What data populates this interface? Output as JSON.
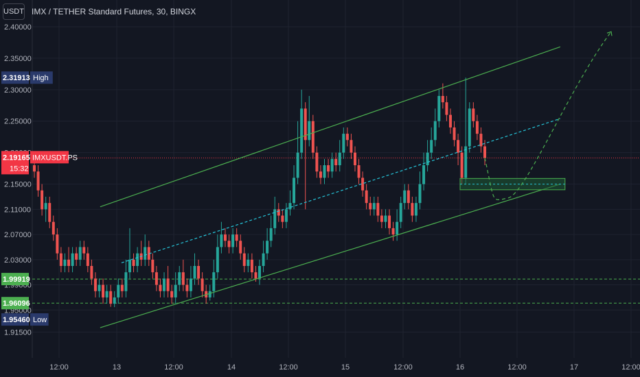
{
  "header": {
    "currency_button": "USDT",
    "symbol_title": "IMX / TETHER Standard Futures, 30, BINGX"
  },
  "colors": {
    "background": "#131722",
    "up": "#26a69a",
    "down": "#ef5350",
    "channel": "#4caf50",
    "midline": "#26c6da",
    "projection": "#4caf50",
    "zone_fill": "#1e5b34",
    "zone_border": "#4caf50",
    "price_line": "#f23645",
    "support_line": "#4caf50",
    "high_badge": "#2a3a6b",
    "low_badge": "#2a3a6b"
  },
  "price_badges": {
    "high": {
      "value": "2.31913",
      "label": "High"
    },
    "current": {
      "value": "2.19165",
      "label": "IMXUSDT.PS",
      "countdown": "15:32"
    },
    "support1": {
      "value": "1.99919"
    },
    "support2": {
      "value": "1.96096"
    },
    "low": {
      "value": "1.95460",
      "label": "Low"
    }
  },
  "chart_data": {
    "type": "candlestick",
    "title": "IMX / TETHER Standard Futures, 30, BINGX",
    "y_ticks": [
      "2.40000",
      "2.35000",
      "2.30000",
      "2.25000",
      "2.20000",
      "2.15000",
      "2.11000",
      "2.07000",
      "2.03000",
      "1.99000",
      "1.95000",
      "1.91500"
    ],
    "x_ticks": [
      "12:00",
      "13",
      "12:00",
      "14",
      "12:00",
      "15",
      "12:00",
      "16",
      "12:00",
      "17",
      "12:00"
    ],
    "ylim": [
      1.885,
      2.425
    ],
    "high": 2.31913,
    "low": 1.9546,
    "current_price": 2.19165,
    "support_levels": [
      1.99919,
      1.96096
    ],
    "channel": {
      "upper": {
        "start": {
          "x": "12 21:00",
          "y": 2.114
        },
        "end": {
          "x": "16 21:00",
          "y": 2.368
        }
      },
      "lower": {
        "start": {
          "x": "12 21:00",
          "y": 1.922
        },
        "end": {
          "x": "16 21:00",
          "y": 2.15
        }
      },
      "mid": {
        "start": {
          "x": "13 01:00",
          "y": 2.025
        },
        "end": {
          "x": "16 21:00",
          "y": 2.254
        }
      }
    },
    "target_zone": {
      "top": 2.159,
      "bottom": 2.141,
      "from": "16 00:00",
      "to": "16 22:00"
    },
    "candles_values": [
      [
        2.18,
        2.17,
        2.2,
        2.16
      ],
      [
        2.17,
        2.14,
        2.18,
        2.13
      ],
      [
        2.14,
        2.11,
        2.15,
        2.1
      ],
      [
        2.11,
        2.12,
        2.13,
        2.09
      ],
      [
        2.12,
        2.09,
        2.13,
        2.08
      ],
      [
        2.09,
        2.07,
        2.1,
        2.06
      ],
      [
        2.07,
        2.04,
        2.08,
        2.03
      ],
      [
        2.04,
        2.02,
        2.05,
        2.01
      ],
      [
        2.02,
        2.03,
        2.04,
        2.01
      ],
      [
        2.03,
        2.02,
        2.05,
        2.01
      ],
      [
        2.02,
        2.04,
        2.05,
        2.01
      ],
      [
        2.04,
        2.03,
        2.05,
        2.02
      ],
      [
        2.03,
        2.05,
        2.06,
        2.02
      ],
      [
        2.05,
        2.04,
        2.06,
        2.03
      ],
      [
        2.04,
        2.02,
        2.05,
        2.01
      ],
      [
        2.02,
        2.0,
        2.03,
        1.99
      ],
      [
        2.0,
        1.98,
        2.01,
        1.97
      ],
      [
        1.98,
        1.99,
        2.0,
        1.97
      ],
      [
        1.99,
        1.97,
        2.0,
        1.96
      ],
      [
        1.97,
        1.98,
        1.99,
        1.96
      ],
      [
        1.98,
        1.96,
        1.99,
        1.955
      ],
      [
        1.96,
        1.97,
        1.98,
        1.9546
      ],
      [
        1.97,
        1.99,
        2.0,
        1.96
      ],
      [
        1.99,
        1.98,
        2.0,
        1.97
      ],
      [
        1.98,
        2.01,
        2.03,
        1.97
      ],
      [
        2.01,
        2.03,
        2.08,
        2.0
      ],
      [
        2.03,
        2.02,
        2.04,
        2.01
      ],
      [
        2.02,
        2.04,
        2.05,
        2.01
      ],
      [
        2.04,
        2.03,
        2.06,
        2.02
      ],
      [
        2.03,
        2.05,
        2.07,
        2.02
      ],
      [
        2.05,
        2.03,
        2.06,
        2.02
      ],
      [
        2.03,
        2.01,
        2.04,
        2.0
      ],
      [
        2.01,
        1.99,
        2.02,
        1.98
      ],
      [
        1.99,
        1.98,
        2.0,
        1.97
      ],
      [
        1.98,
        2.0,
        2.01,
        1.97
      ],
      [
        2.0,
        1.98,
        2.02,
        1.97
      ],
      [
        1.98,
        1.97,
        1.99,
        1.96
      ],
      [
        1.97,
        1.99,
        2.01,
        1.96
      ],
      [
        1.99,
        2.01,
        2.02,
        1.98
      ],
      [
        2.01,
        1.99,
        2.03,
        1.98
      ],
      [
        1.99,
        1.98,
        2.0,
        1.97
      ],
      [
        1.98,
        2.0,
        2.02,
        1.97
      ],
      [
        2.0,
        2.02,
        2.04,
        1.99
      ],
      [
        2.02,
        2.0,
        2.03,
        1.99
      ],
      [
        2.0,
        1.98,
        2.01,
        1.97
      ],
      [
        1.98,
        1.97,
        1.99,
        1.96
      ],
      [
        1.97,
        1.98,
        1.99,
        1.965
      ],
      [
        1.98,
        2.01,
        2.03,
        1.97
      ],
      [
        2.01,
        2.05,
        2.07,
        2.0
      ],
      [
        2.05,
        2.07,
        2.09,
        2.04
      ],
      [
        2.07,
        2.06,
        2.08,
        2.05
      ],
      [
        2.06,
        2.05,
        2.07,
        2.04
      ],
      [
        2.05,
        2.07,
        2.08,
        2.04
      ],
      [
        2.07,
        2.06,
        2.08,
        2.05
      ],
      [
        2.06,
        2.04,
        2.07,
        2.03
      ],
      [
        2.04,
        2.02,
        2.05,
        2.01
      ],
      [
        2.02,
        2.03,
        2.04,
        2.01
      ],
      [
        2.03,
        2.01,
        2.04,
        2.0
      ],
      [
        2.01,
        2.0,
        2.02,
        1.995
      ],
      [
        2.0,
        2.02,
        2.03,
        1.99
      ],
      [
        2.02,
        2.04,
        2.06,
        2.01
      ],
      [
        2.04,
        2.06,
        2.08,
        2.03
      ],
      [
        2.06,
        2.08,
        2.1,
        2.05
      ],
      [
        2.08,
        2.11,
        2.13,
        2.07
      ],
      [
        2.11,
        2.1,
        2.12,
        2.09
      ],
      [
        2.1,
        2.09,
        2.11,
        2.08
      ],
      [
        2.09,
        2.11,
        2.12,
        2.08
      ],
      [
        2.11,
        2.12,
        2.14,
        2.1
      ],
      [
        2.12,
        2.16,
        2.18,
        2.11
      ],
      [
        2.16,
        2.2,
        2.25,
        2.15
      ],
      [
        2.2,
        2.27,
        2.3,
        2.19
      ],
      [
        2.27,
        2.22,
        2.28,
        2.11
      ],
      [
        2.22,
        2.25,
        2.29,
        2.21
      ],
      [
        2.25,
        2.2,
        2.26,
        2.19
      ],
      [
        2.2,
        2.17,
        2.21,
        2.16
      ],
      [
        2.17,
        2.16,
        2.18,
        2.15
      ],
      [
        2.16,
        2.18,
        2.19,
        2.15
      ],
      [
        2.18,
        2.17,
        2.19,
        2.16
      ],
      [
        2.17,
        2.19,
        2.2,
        2.16
      ],
      [
        2.19,
        2.18,
        2.2,
        2.17
      ],
      [
        2.18,
        2.2,
        2.22,
        2.17
      ],
      [
        2.2,
        2.23,
        2.24,
        2.19
      ],
      [
        2.23,
        2.22,
        2.24,
        2.21
      ],
      [
        2.22,
        2.2,
        2.23,
        2.19
      ],
      [
        2.2,
        2.18,
        2.21,
        2.17
      ],
      [
        2.18,
        2.16,
        2.19,
        2.15
      ],
      [
        2.16,
        2.14,
        2.17,
        2.13
      ],
      [
        2.14,
        2.12,
        2.15,
        2.11
      ],
      [
        2.12,
        2.11,
        2.13,
        2.1
      ],
      [
        2.11,
        2.12,
        2.13,
        2.1
      ],
      [
        2.12,
        2.1,
        2.13,
        2.09
      ],
      [
        2.1,
        2.09,
        2.11,
        2.08
      ],
      [
        2.09,
        2.1,
        2.11,
        2.08
      ],
      [
        2.1,
        2.08,
        2.11,
        2.07
      ],
      [
        2.08,
        2.07,
        2.09,
        2.06
      ],
      [
        2.07,
        2.09,
        2.11,
        2.06
      ],
      [
        2.09,
        2.12,
        2.13,
        2.08
      ],
      [
        2.12,
        2.14,
        2.15,
        2.11
      ],
      [
        2.14,
        2.12,
        2.15,
        2.11
      ],
      [
        2.12,
        2.1,
        2.13,
        2.09
      ],
      [
        2.1,
        2.12,
        2.13,
        2.09
      ],
      [
        2.12,
        2.15,
        2.17,
        2.11
      ],
      [
        2.15,
        2.18,
        2.2,
        2.14
      ],
      [
        2.18,
        2.2,
        2.22,
        2.17
      ],
      [
        2.2,
        2.22,
        2.24,
        2.19
      ],
      [
        2.22,
        2.25,
        2.27,
        2.21
      ],
      [
        2.25,
        2.29,
        2.3,
        2.24
      ],
      [
        2.29,
        2.28,
        2.31,
        2.27
      ],
      [
        2.28,
        2.26,
        2.29,
        2.25
      ],
      [
        2.26,
        2.24,
        2.27,
        2.23
      ],
      [
        2.24,
        2.22,
        2.25,
        2.21
      ],
      [
        2.22,
        2.2,
        2.23,
        2.18
      ],
      [
        2.2,
        2.16,
        2.21,
        2.15
      ],
      [
        2.16,
        2.21,
        2.31913,
        2.15
      ],
      [
        2.21,
        2.27,
        2.28,
        2.2
      ],
      [
        2.27,
        2.25,
        2.28,
        2.24
      ],
      [
        2.25,
        2.23,
        2.26,
        2.22
      ],
      [
        2.23,
        2.21,
        2.24,
        2.2
      ],
      [
        2.21,
        2.19165,
        2.22,
        2.18
      ]
    ]
  }
}
